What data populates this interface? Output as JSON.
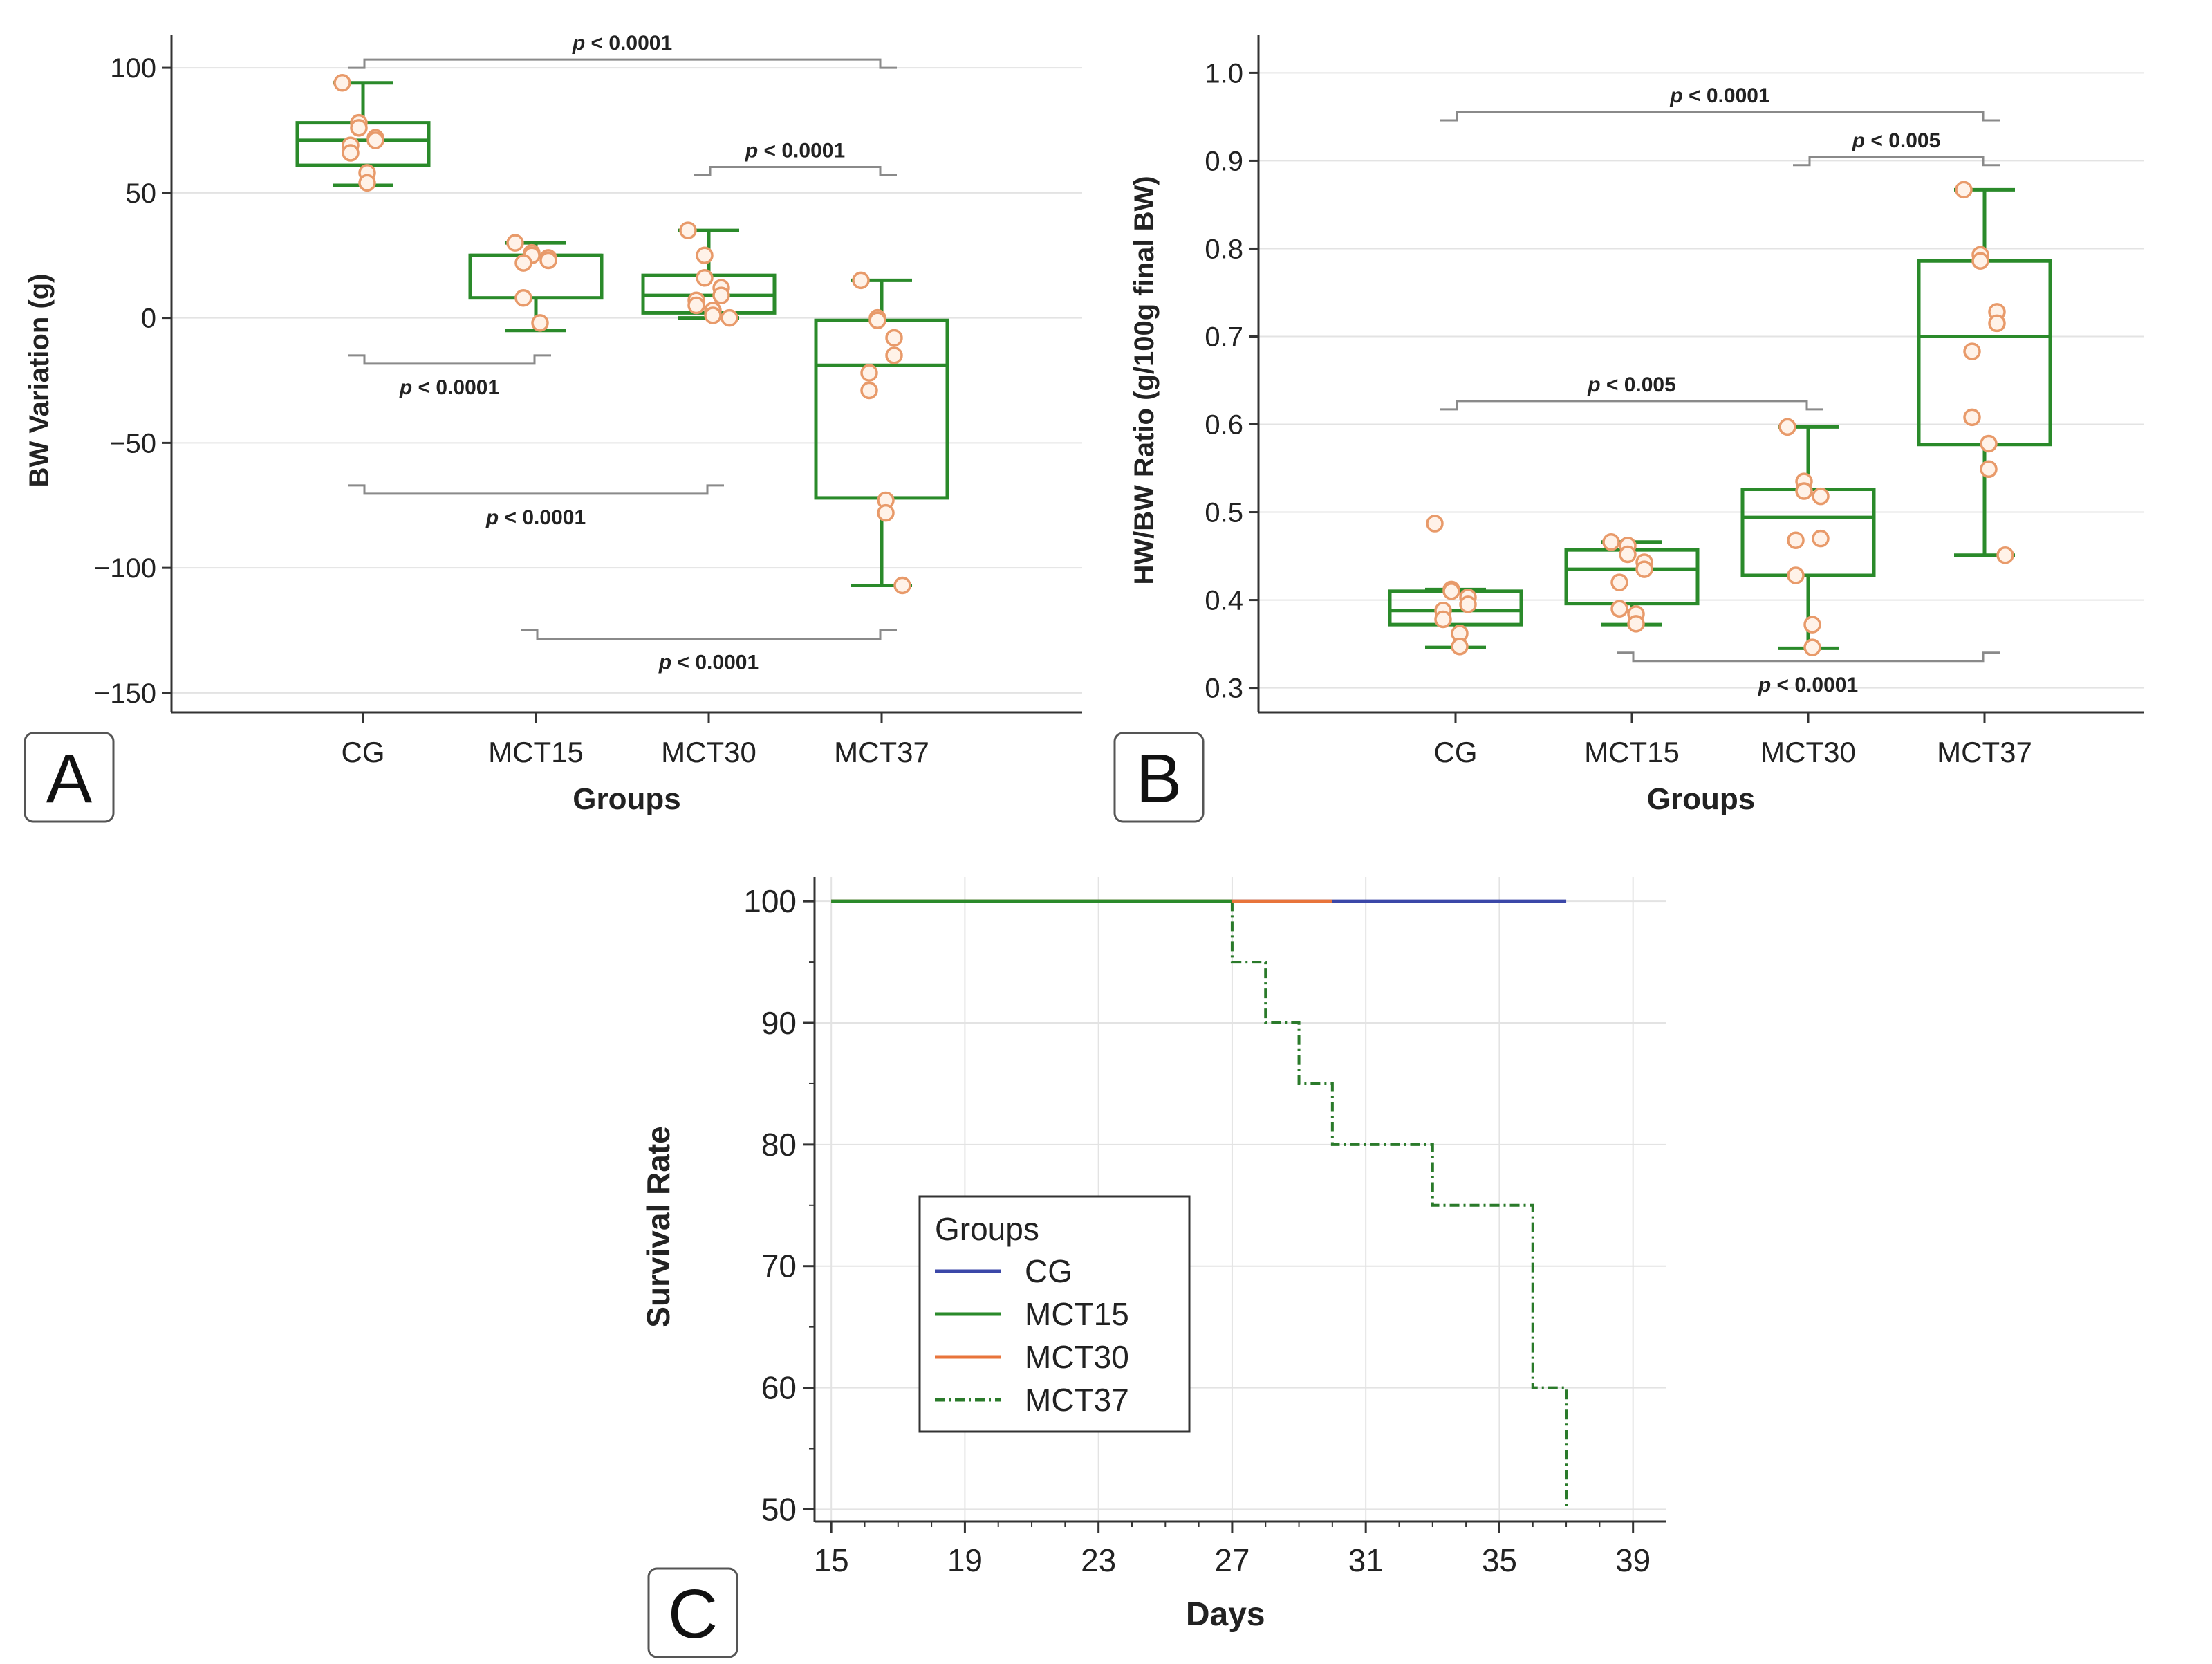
{
  "figure": {
    "panel_letters": [
      "A",
      "B",
      "C"
    ]
  },
  "chart_data": [
    {
      "panel": "A",
      "type": "box",
      "title": "",
      "xlabel": "Groups",
      "ylabel": "BW Variation (g)",
      "categories": [
        "CG",
        "MCT15",
        "MCT30",
        "MCT37"
      ],
      "ylim": [
        -155,
        105
      ],
      "yticks": [
        100,
        50,
        0,
        -50,
        -100,
        -150
      ],
      "ytick_labels": [
        "100",
        "50",
        "0",
        "−50",
        "−100",
        "−150"
      ],
      "grid": true,
      "box_color": "#2a8a2a",
      "point_color": "#e89a6a",
      "boxes": [
        {
          "group": "CG",
          "min": 53,
          "q1": 61,
          "median": 71,
          "q3": 78,
          "max": 94,
          "points": [
            94,
            78,
            76,
            72,
            71,
            69,
            66,
            58,
            54
          ]
        },
        {
          "group": "MCT15",
          "min": -5,
          "q1": 8,
          "median": 25,
          "q3": 25,
          "max": 30,
          "points": [
            30,
            26,
            25,
            24,
            23,
            22,
            8,
            -2
          ]
        },
        {
          "group": "MCT30",
          "min": 0,
          "q1": 2,
          "median": 9,
          "q3": 17,
          "max": 35,
          "points": [
            35,
            25,
            16,
            12,
            9,
            7,
            5,
            3,
            1,
            0
          ]
        },
        {
          "group": "MCT37",
          "min": -107,
          "q1": -72,
          "median": -19,
          "q3": -1,
          "max": 15,
          "points": [
            15,
            0,
            -1,
            -8,
            -15,
            -22,
            -29,
            -73,
            -78,
            -107
          ]
        }
      ],
      "comparisons": [
        {
          "from": "CG",
          "to": "MCT37",
          "level": 100,
          "label": "< 0.0001",
          "label_side": "above"
        },
        {
          "from": "MCT30",
          "to": "MCT37",
          "level": 57,
          "label": "< 0.0001",
          "label_side": "above"
        },
        {
          "from": "CG",
          "to": "MCT15",
          "level": -15,
          "label": "< 0.0001",
          "label_side": "below"
        },
        {
          "from": "CG",
          "to": "MCT30",
          "level": -67,
          "label": "< 0.0001",
          "label_side": "below"
        },
        {
          "from": "MCT15",
          "to": "MCT37",
          "level": -125,
          "label": "< 0.0001",
          "label_side": "below"
        }
      ]
    },
    {
      "panel": "B",
      "type": "box",
      "title": "",
      "xlabel": "Groups",
      "ylabel": "HW/BW Ratio (g/100g final BW)",
      "categories": [
        "CG",
        "MCT15",
        "MCT30",
        "MCT37"
      ],
      "ylim": [
        0.28,
        1.02
      ],
      "yticks": [
        1.0,
        0.9,
        0.8,
        0.7,
        0.6,
        0.5,
        0.4,
        0.3
      ],
      "ytick_labels": [
        "1.0",
        "0.9",
        "0.8",
        "0.7",
        "0.6",
        "0.5",
        "0.4",
        "0.3"
      ],
      "grid": true,
      "box_color": "#2a8a2a",
      "point_color": "#e89a6a",
      "boxes": [
        {
          "group": "CG",
          "min": 0.346,
          "q1": 0.372,
          "median": 0.388,
          "q3": 0.41,
          "max": 0.412,
          "points": [
            0.487,
            0.412,
            0.41,
            0.403,
            0.395,
            0.388,
            0.378,
            0.362,
            0.347
          ]
        },
        {
          "group": "MCT15",
          "min": 0.372,
          "q1": 0.396,
          "median": 0.435,
          "q3": 0.457,
          "max": 0.466,
          "points": [
            0.466,
            0.462,
            0.452,
            0.443,
            0.435,
            0.42,
            0.39,
            0.384,
            0.373
          ]
        },
        {
          "group": "MCT30",
          "min": 0.345,
          "q1": 0.428,
          "median": 0.494,
          "q3": 0.526,
          "max": 0.597,
          "points": [
            0.597,
            0.535,
            0.524,
            0.518,
            0.47,
            0.468,
            0.428,
            0.372,
            0.346
          ]
        },
        {
          "group": "MCT37",
          "min": 0.451,
          "q1": 0.577,
          "median": 0.7,
          "q3": 0.786,
          "max": 0.867,
          "points": [
            0.867,
            0.793,
            0.786,
            0.728,
            0.715,
            0.683,
            0.608,
            0.578,
            0.549,
            0.451
          ]
        }
      ],
      "comparisons": [
        {
          "from": "CG",
          "to": "MCT37",
          "level": 0.946,
          "label": "< 0.0001",
          "label_side": "above"
        },
        {
          "from": "MCT30",
          "to": "MCT37",
          "level": 0.895,
          "label": "< 0.005",
          "label_side": "above"
        },
        {
          "from": "CG",
          "to": "MCT30",
          "level": 0.617,
          "label": "< 0.005",
          "label_side": "above"
        },
        {
          "from": "MCT15",
          "to": "MCT37",
          "level": 0.34,
          "label": "< 0.0001",
          "label_side": "below"
        }
      ]
    },
    {
      "panel": "C",
      "type": "line",
      "subtype": "step",
      "title": "",
      "xlabel": "Days",
      "ylabel": "Survival Rate",
      "xlim": [
        14.5,
        40
      ],
      "ylim": [
        49,
        102
      ],
      "xticks": [
        15,
        19,
        23,
        27,
        31,
        35,
        39
      ],
      "yticks": [
        100,
        90,
        80,
        70,
        60,
        50
      ],
      "grid": true,
      "legend": {
        "title": "Groups",
        "placement": "center-left"
      },
      "series": [
        {
          "name": "CG",
          "color": "#3b47a8",
          "dash": "solid",
          "x": [
            15,
            37
          ],
          "y": [
            100,
            100
          ]
        },
        {
          "name": "MCT15",
          "color": "#2a8a2a",
          "dash": "solid",
          "x": [
            15,
            27
          ],
          "y": [
            100,
            100
          ]
        },
        {
          "name": "MCT30",
          "color": "#e8743b",
          "dash": "solid",
          "x": [
            15,
            30
          ],
          "y": [
            100,
            100
          ]
        },
        {
          "name": "MCT37",
          "color": "#2a7a2a",
          "dash": "dashdot",
          "x": [
            15,
            27,
            28,
            29,
            30,
            33,
            36,
            37
          ],
          "y": [
            100,
            95,
            90,
            85,
            80,
            75,
            60,
            50
          ]
        }
      ]
    }
  ]
}
